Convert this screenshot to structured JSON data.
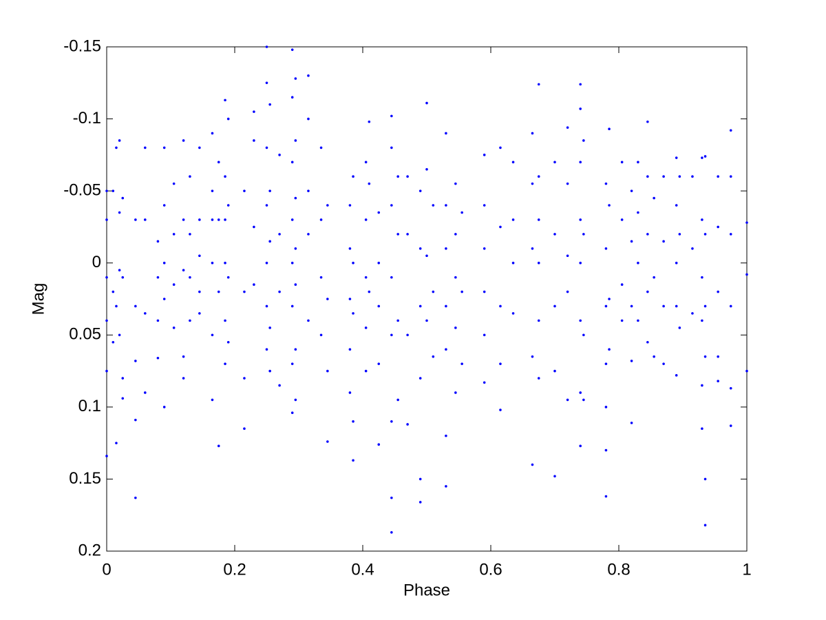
{
  "chart_data": {
    "type": "scatter",
    "x_label": "Phase",
    "y_label": "Mag",
    "color": "#0000ff",
    "xlim": [
      0,
      1
    ],
    "xticks": [
      0,
      0.2,
      0.4,
      0.6,
      0.8,
      1
    ],
    "ylim": [
      -0.15,
      0.2
    ],
    "yticks": [
      -0.15,
      -0.1,
      -0.05,
      0,
      0.05,
      0.1,
      0.15,
      0.2
    ],
    "y_inverted": true,
    "grid": false,
    "points": [
      [
        0,
        -0.03
      ],
      [
        0,
        0.01
      ],
      [
        0,
        0.04
      ],
      [
        0,
        0.134
      ],
      [
        0,
        -0.05
      ],
      [
        0,
        0.075
      ],
      [
        0.01,
        -0.05
      ],
      [
        0.01,
        0.02
      ],
      [
        0.01,
        0.055
      ],
      [
        0.015,
        -0.08
      ],
      [
        0.015,
        0.03
      ],
      [
        0.015,
        0.125
      ],
      [
        0.02,
        -0.085
      ],
      [
        0.02,
        -0.035
      ],
      [
        0.02,
        0.005
      ],
      [
        0.02,
        0.05
      ],
      [
        0.025,
        -0.045
      ],
      [
        0.025,
        0.01
      ],
      [
        0.025,
        0.08
      ],
      [
        0.025,
        0.094
      ],
      [
        0.045,
        -0.03
      ],
      [
        0.045,
        0.03
      ],
      [
        0.045,
        0.068
      ],
      [
        0.045,
        0.109
      ],
      [
        0.045,
        0.163
      ],
      [
        0.06,
        -0.08
      ],
      [
        0.06,
        -0.03
      ],
      [
        0.06,
        0.035
      ],
      [
        0.06,
        0.09
      ],
      [
        0.08,
        -0.015
      ],
      [
        0.08,
        0.01
      ],
      [
        0.08,
        0.04
      ],
      [
        0.08,
        0.066
      ],
      [
        0.09,
        -0.08
      ],
      [
        0.09,
        -0.04
      ],
      [
        0.09,
        0
      ],
      [
        0.09,
        0.025
      ],
      [
        0.09,
        0.1
      ],
      [
        0.105,
        -0.055
      ],
      [
        0.105,
        -0.02
      ],
      [
        0.105,
        0.015
      ],
      [
        0.105,
        0.045
      ],
      [
        0.12,
        -0.085
      ],
      [
        0.12,
        -0.03
      ],
      [
        0.12,
        0.005
      ],
      [
        0.12,
        0.065
      ],
      [
        0.12,
        0.08
      ],
      [
        0.13,
        -0.06
      ],
      [
        0.13,
        -0.02
      ],
      [
        0.13,
        0.01
      ],
      [
        0.13,
        0.04
      ],
      [
        0.145,
        -0.08
      ],
      [
        0.145,
        -0.03
      ],
      [
        0.145,
        -0.005
      ],
      [
        0.145,
        0.02
      ],
      [
        0.145,
        0.035
      ],
      [
        0.165,
        -0.09
      ],
      [
        0.165,
        -0.05
      ],
      [
        0.165,
        -0.03
      ],
      [
        0.165,
        0
      ],
      [
        0.165,
        0.05
      ],
      [
        0.165,
        0.095
      ],
      [
        0.175,
        -0.07
      ],
      [
        0.175,
        -0.03
      ],
      [
        0.175,
        0.02
      ],
      [
        0.175,
        0.127
      ],
      [
        0.185,
        -0.113
      ],
      [
        0.185,
        -0.06
      ],
      [
        0.185,
        -0.03
      ],
      [
        0.185,
        0
      ],
      [
        0.185,
        0.04
      ],
      [
        0.185,
        0.07
      ],
      [
        0.19,
        -0.1
      ],
      [
        0.19,
        -0.04
      ],
      [
        0.19,
        0.01
      ],
      [
        0.19,
        0.055
      ],
      [
        0.215,
        -0.05
      ],
      [
        0.215,
        0.02
      ],
      [
        0.215,
        0.08
      ],
      [
        0.215,
        0.115
      ],
      [
        0.23,
        -0.105
      ],
      [
        0.23,
        -0.085
      ],
      [
        0.23,
        -0.025
      ],
      [
        0.23,
        0.015
      ],
      [
        0.25,
        -0.15
      ],
      [
        0.25,
        -0.125
      ],
      [
        0.25,
        -0.08
      ],
      [
        0.25,
        -0.04
      ],
      [
        0.25,
        0
      ],
      [
        0.25,
        0.03
      ],
      [
        0.25,
        0.06
      ],
      [
        0.255,
        -0.11
      ],
      [
        0.255,
        -0.05
      ],
      [
        0.255,
        -0.015
      ],
      [
        0.255,
        0.045
      ],
      [
        0.255,
        0.075
      ],
      [
        0.27,
        -0.075
      ],
      [
        0.27,
        -0.02
      ],
      [
        0.27,
        0.02
      ],
      [
        0.27,
        0.085
      ],
      [
        0.29,
        -0.148
      ],
      [
        0.29,
        -0.115
      ],
      [
        0.29,
        -0.07
      ],
      [
        0.29,
        -0.03
      ],
      [
        0.29,
        0
      ],
      [
        0.29,
        0.03
      ],
      [
        0.29,
        0.07
      ],
      [
        0.29,
        0.104
      ],
      [
        0.295,
        -0.128
      ],
      [
        0.295,
        -0.085
      ],
      [
        0.295,
        -0.045
      ],
      [
        0.295,
        -0.01
      ],
      [
        0.295,
        0.015
      ],
      [
        0.295,
        0.06
      ],
      [
        0.295,
        0.095
      ],
      [
        0.315,
        -0.13
      ],
      [
        0.315,
        -0.1
      ],
      [
        0.315,
        -0.05
      ],
      [
        0.315,
        -0.02
      ],
      [
        0.315,
        0.04
      ],
      [
        0.335,
        -0.08
      ],
      [
        0.335,
        -0.03
      ],
      [
        0.335,
        0.01
      ],
      [
        0.335,
        0.05
      ],
      [
        0.345,
        -0.04
      ],
      [
        0.345,
        0.025
      ],
      [
        0.345,
        0.075
      ],
      [
        0.345,
        0.124
      ],
      [
        0.38,
        -0.04
      ],
      [
        0.38,
        -0.01
      ],
      [
        0.38,
        0.025
      ],
      [
        0.38,
        0.06
      ],
      [
        0.38,
        0.09
      ],
      [
        0.385,
        -0.06
      ],
      [
        0.385,
        0
      ],
      [
        0.385,
        0.035
      ],
      [
        0.385,
        0.11
      ],
      [
        0.385,
        0.137
      ],
      [
        0.405,
        -0.07
      ],
      [
        0.405,
        -0.03
      ],
      [
        0.405,
        0.01
      ],
      [
        0.405,
        0.045
      ],
      [
        0.405,
        0.075
      ],
      [
        0.41,
        -0.098
      ],
      [
        0.41,
        -0.055
      ],
      [
        0.41,
        0.02
      ],
      [
        0.425,
        -0.035
      ],
      [
        0.425,
        0
      ],
      [
        0.425,
        0.03
      ],
      [
        0.425,
        0.07
      ],
      [
        0.425,
        0.126
      ],
      [
        0.445,
        -0.102
      ],
      [
        0.445,
        -0.08
      ],
      [
        0.445,
        -0.04
      ],
      [
        0.445,
        0.01
      ],
      [
        0.445,
        0.05
      ],
      [
        0.445,
        0.11
      ],
      [
        0.445,
        0.163
      ],
      [
        0.445,
        0.187
      ],
      [
        0.455,
        -0.06
      ],
      [
        0.455,
        -0.02
      ],
      [
        0.455,
        0.04
      ],
      [
        0.455,
        0.095
      ],
      [
        0.47,
        -0.06
      ],
      [
        0.47,
        -0.02
      ],
      [
        0.47,
        0.05
      ],
      [
        0.47,
        0.112
      ],
      [
        0.49,
        -0.05
      ],
      [
        0.49,
        -0.01
      ],
      [
        0.49,
        0.03
      ],
      [
        0.49,
        0.08
      ],
      [
        0.49,
        0.15
      ],
      [
        0.49,
        0.166
      ],
      [
        0.5,
        -0.111
      ],
      [
        0.5,
        -0.065
      ],
      [
        0.5,
        -0.005
      ],
      [
        0.5,
        0.04
      ],
      [
        0.51,
        -0.04
      ],
      [
        0.51,
        0.02
      ],
      [
        0.51,
        0.065
      ],
      [
        0.53,
        -0.09
      ],
      [
        0.53,
        -0.04
      ],
      [
        0.53,
        -0.01
      ],
      [
        0.53,
        0.03
      ],
      [
        0.53,
        0.06
      ],
      [
        0.53,
        0.12
      ],
      [
        0.53,
        0.155
      ],
      [
        0.545,
        -0.055
      ],
      [
        0.545,
        -0.02
      ],
      [
        0.545,
        0.01
      ],
      [
        0.545,
        0.045
      ],
      [
        0.545,
        0.09
      ],
      [
        0.555,
        -0.035
      ],
      [
        0.555,
        0.02
      ],
      [
        0.555,
        0.07
      ],
      [
        0.59,
        -0.075
      ],
      [
        0.59,
        -0.04
      ],
      [
        0.59,
        -0.01
      ],
      [
        0.59,
        0.02
      ],
      [
        0.59,
        0.05
      ],
      [
        0.59,
        0.083
      ],
      [
        0.615,
        -0.08
      ],
      [
        0.615,
        -0.025
      ],
      [
        0.615,
        0.03
      ],
      [
        0.615,
        0.07
      ],
      [
        0.615,
        0.102
      ],
      [
        0.635,
        -0.07
      ],
      [
        0.635,
        -0.03
      ],
      [
        0.635,
        0
      ],
      [
        0.635,
        0.035
      ],
      [
        0.665,
        -0.09
      ],
      [
        0.665,
        -0.055
      ],
      [
        0.665,
        -0.01
      ],
      [
        0.665,
        0.065
      ],
      [
        0.665,
        0.14
      ],
      [
        0.675,
        -0.124
      ],
      [
        0.675,
        -0.06
      ],
      [
        0.675,
        -0.03
      ],
      [
        0.675,
        0
      ],
      [
        0.675,
        0.04
      ],
      [
        0.675,
        0.08
      ],
      [
        0.7,
        -0.07
      ],
      [
        0.7,
        -0.02
      ],
      [
        0.7,
        0.03
      ],
      [
        0.7,
        0.075
      ],
      [
        0.7,
        0.148
      ],
      [
        0.72,
        -0.094
      ],
      [
        0.72,
        -0.055
      ],
      [
        0.72,
        -0.005
      ],
      [
        0.72,
        0.02
      ],
      [
        0.72,
        0.095
      ],
      [
        0.74,
        -0.124
      ],
      [
        0.74,
        -0.107
      ],
      [
        0.74,
        -0.07
      ],
      [
        0.74,
        -0.03
      ],
      [
        0.74,
        0
      ],
      [
        0.74,
        0.04
      ],
      [
        0.74,
        0.09
      ],
      [
        0.74,
        0.127
      ],
      [
        0.745,
        -0.085
      ],
      [
        0.745,
        -0.02
      ],
      [
        0.745,
        0.05
      ],
      [
        0.745,
        0.095
      ],
      [
        0.78,
        -0.055
      ],
      [
        0.78,
        -0.01
      ],
      [
        0.78,
        0.03
      ],
      [
        0.78,
        0.07
      ],
      [
        0.78,
        0.1
      ],
      [
        0.78,
        0.13
      ],
      [
        0.78,
        0.162
      ],
      [
        0.785,
        -0.093
      ],
      [
        0.785,
        -0.04
      ],
      [
        0.785,
        0.025
      ],
      [
        0.785,
        0.06
      ],
      [
        0.805,
        -0.07
      ],
      [
        0.805,
        -0.03
      ],
      [
        0.805,
        0.015
      ],
      [
        0.805,
        0.04
      ],
      [
        0.82,
        -0.05
      ],
      [
        0.82,
        -0.015
      ],
      [
        0.82,
        0.03
      ],
      [
        0.82,
        0.068
      ],
      [
        0.82,
        0.111
      ],
      [
        0.83,
        -0.07
      ],
      [
        0.83,
        -0.035
      ],
      [
        0.83,
        0
      ],
      [
        0.83,
        0.04
      ],
      [
        0.845,
        -0.098
      ],
      [
        0.845,
        -0.06
      ],
      [
        0.845,
        -0.02
      ],
      [
        0.845,
        0.02
      ],
      [
        0.845,
        0.055
      ],
      [
        0.855,
        -0.045
      ],
      [
        0.855,
        0.01
      ],
      [
        0.855,
        0.065
      ],
      [
        0.87,
        -0.06
      ],
      [
        0.87,
        -0.015
      ],
      [
        0.87,
        0.03
      ],
      [
        0.87,
        0.07
      ],
      [
        0.89,
        -0.073
      ],
      [
        0.89,
        -0.04
      ],
      [
        0.89,
        0
      ],
      [
        0.89,
        0.03
      ],
      [
        0.89,
        0.078
      ],
      [
        0.895,
        -0.06
      ],
      [
        0.895,
        -0.02
      ],
      [
        0.895,
        0.045
      ],
      [
        0.915,
        -0.06
      ],
      [
        0.915,
        -0.01
      ],
      [
        0.915,
        0.035
      ],
      [
        0.93,
        -0.073
      ],
      [
        0.93,
        -0.03
      ],
      [
        0.93,
        0.01
      ],
      [
        0.93,
        0.04
      ],
      [
        0.93,
        0.085
      ],
      [
        0.93,
        0.115
      ],
      [
        0.935,
        -0.074
      ],
      [
        0.935,
        -0.02
      ],
      [
        0.935,
        0.03
      ],
      [
        0.935,
        0.065
      ],
      [
        0.935,
        0.15
      ],
      [
        0.935,
        0.182
      ],
      [
        0.955,
        -0.06
      ],
      [
        0.955,
        -0.025
      ],
      [
        0.955,
        0.02
      ],
      [
        0.955,
        0.065
      ],
      [
        0.955,
        0.082
      ],
      [
        0.975,
        -0.092
      ],
      [
        0.975,
        -0.06
      ],
      [
        0.975,
        -0.02
      ],
      [
        0.975,
        0.03
      ],
      [
        0.975,
        0.087
      ],
      [
        0.975,
        0.113
      ],
      [
        1,
        -0.028
      ],
      [
        1,
        0.008
      ],
      [
        1,
        0.075
      ]
    ]
  }
}
